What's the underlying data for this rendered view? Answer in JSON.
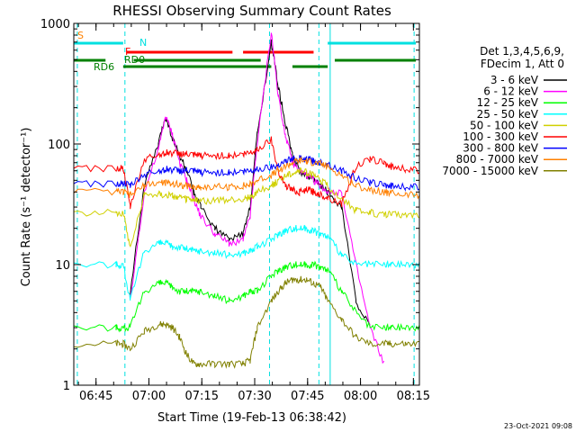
{
  "chart_data": {
    "type": "line",
    "title": "RHESSI Observing Summary Count Rates",
    "xlabel": "Start Time (19-Feb-13 06:38:42)",
    "ylabel": "Count Rate (s⁻¹ detector⁻¹)",
    "yscale": "log",
    "ylim": [
      1,
      1000
    ],
    "xlim_min": [
      0,
      98
    ],
    "x_ticks": [
      "06:45",
      "07:00",
      "07:15",
      "07:30",
      "07:45",
      "08:00",
      "08:15"
    ],
    "y_ticks": [
      "1",
      "10",
      "100",
      "1000"
    ],
    "legend_header": [
      "Det 1,3,4,5,6,9,",
      "FDecim 1, Att 0"
    ],
    "footer_date": "23-Oct-2021 09:08",
    "flags": [
      {
        "label": "S",
        "color": "#ff8000"
      },
      {
        "label": "N",
        "color": "#00e0e0"
      },
      {
        "label": "F",
        "color": "#ff0000"
      },
      {
        "label": "RD0",
        "color": "#008000"
      },
      {
        "label": "RD6",
        "color": "#008000"
      }
    ],
    "series": [
      {
        "name": "3 - 6 keV",
        "color": "#000000",
        "x": [
          0,
          12,
          14,
          16,
          20,
          24,
          26,
          28,
          30,
          32,
          34,
          36,
          40,
          44,
          48,
          50,
          52,
          56,
          58,
          60,
          62,
          64,
          66,
          68,
          70,
          72,
          76,
          80,
          84,
          88,
          90,
          94,
          98
        ],
        "y": [
          null,
          null,
          null,
          6,
          45,
          100,
          170,
          110,
          80,
          60,
          40,
          30,
          20,
          16,
          18,
          30,
          120,
          700,
          300,
          150,
          80,
          60,
          55,
          50,
          45,
          40,
          30,
          5,
          3,
          null,
          null,
          null,
          null
        ]
      },
      {
        "name": "6 - 12 keV",
        "color": "#ff00ff",
        "x": [
          0,
          12,
          14,
          16,
          20,
          24,
          26,
          28,
          30,
          32,
          34,
          36,
          40,
          44,
          48,
          50,
          52,
          56,
          58,
          60,
          62,
          64,
          66,
          68,
          70,
          72,
          76,
          80,
          84,
          88,
          90,
          94,
          98
        ],
        "y": [
          null,
          null,
          null,
          5,
          40,
          90,
          170,
          120,
          70,
          50,
          35,
          25,
          18,
          15,
          16,
          25,
          100,
          850,
          250,
          120,
          70,
          60,
          55,
          50,
          45,
          40,
          40,
          10,
          3,
          1.5,
          null,
          null,
          null
        ]
      },
      {
        "name": "12 - 25 keV",
        "color": "#00ff00",
        "x": [
          0,
          12,
          14,
          16,
          20,
          24,
          26,
          28,
          30,
          32,
          34,
          36,
          40,
          44,
          48,
          50,
          52,
          56,
          58,
          60,
          62,
          64,
          66,
          68,
          70,
          72,
          76,
          80,
          84,
          88,
          90,
          94,
          98
        ],
        "y": [
          3,
          3,
          3,
          3,
          6,
          7,
          7,
          6.5,
          6,
          6,
          6,
          6,
          5.5,
          5,
          5.5,
          6,
          6,
          8,
          9,
          9.5,
          10,
          10,
          10,
          10,
          9.5,
          9,
          6,
          4,
          3,
          3,
          3,
          3,
          3
        ]
      },
      {
        "name": "25 - 50 keV",
        "color": "#00ffff",
        "x": [
          0,
          12,
          14,
          16,
          20,
          24,
          26,
          28,
          30,
          32,
          34,
          36,
          40,
          44,
          48,
          50,
          52,
          56,
          58,
          60,
          62,
          64,
          66,
          68,
          70,
          72,
          76,
          80,
          84,
          88,
          90,
          94,
          98
        ],
        "y": [
          10,
          10,
          10,
          5,
          13,
          15,
          15,
          14,
          14,
          13.5,
          13,
          13,
          12.5,
          12,
          12.5,
          13,
          14,
          16,
          18,
          19,
          20,
          20,
          20,
          19,
          18,
          17,
          12,
          10,
          10,
          10,
          10,
          10,
          10
        ]
      },
      {
        "name": "50 - 100 keV",
        "color": "#d0d000",
        "x": [
          0,
          12,
          14,
          16,
          20,
          24,
          26,
          28,
          30,
          32,
          34,
          36,
          40,
          44,
          48,
          50,
          52,
          56,
          58,
          60,
          62,
          64,
          66,
          68,
          70,
          72,
          76,
          80,
          84,
          88,
          90,
          94,
          98
        ],
        "y": [
          27,
          27,
          27,
          14,
          38,
          39,
          38,
          37,
          36,
          35,
          34,
          34,
          34,
          34,
          35,
          36,
          40,
          45,
          50,
          55,
          58,
          60,
          58,
          55,
          50,
          45,
          35,
          28,
          27,
          26,
          26,
          26,
          26
        ]
      },
      {
        "name": "100 - 300 keV",
        "color": "#ff0000",
        "x": [
          0,
          12,
          14,
          16,
          20,
          24,
          26,
          28,
          30,
          32,
          34,
          36,
          40,
          44,
          48,
          50,
          52,
          56,
          58,
          60,
          62,
          64,
          66,
          68,
          70,
          72,
          76,
          80,
          84,
          88,
          90,
          94,
          98
        ],
        "y": [
          63,
          63,
          63,
          30,
          75,
          82,
          85,
          84,
          83,
          82,
          80,
          80,
          80,
          80,
          82,
          85,
          90,
          110,
          60,
          45,
          42,
          40,
          42,
          40,
          38,
          36,
          32,
          65,
          75,
          70,
          65,
          62,
          60
        ]
      },
      {
        "name": "300 - 800 keV",
        "color": "#0000ff",
        "x": [
          0,
          12,
          14,
          16,
          20,
          24,
          26,
          28,
          30,
          32,
          34,
          36,
          40,
          44,
          48,
          50,
          52,
          56,
          58,
          60,
          62,
          64,
          66,
          68,
          70,
          72,
          76,
          80,
          84,
          88,
          90,
          94,
          98
        ],
        "y": [
          47,
          47,
          47,
          45,
          56,
          60,
          62,
          61,
          60,
          60,
          59,
          58,
          58,
          58,
          59,
          60,
          62,
          65,
          68,
          72,
          75,
          76,
          75,
          72,
          70,
          68,
          60,
          52,
          48,
          46,
          45,
          44,
          44
        ]
      },
      {
        "name": "800 - 7000 keV",
        "color": "#ff8000",
        "x": [
          0,
          12,
          14,
          16,
          20,
          24,
          26,
          28,
          30,
          32,
          34,
          36,
          40,
          44,
          48,
          50,
          52,
          56,
          58,
          60,
          62,
          64,
          66,
          68,
          70,
          72,
          76,
          80,
          84,
          88,
          90,
          94,
          98
        ],
        "y": [
          40,
          40,
          40,
          38,
          45,
          48,
          48,
          47,
          46,
          45,
          44,
          44,
          44,
          44,
          45,
          46,
          50,
          55,
          60,
          65,
          70,
          73,
          72,
          70,
          68,
          65,
          55,
          45,
          42,
          40,
          39,
          38,
          38
        ]
      },
      {
        "name": "7000 - 15000 keV",
        "color": "#808000",
        "x": [
          0,
          12,
          14,
          16,
          20,
          24,
          26,
          28,
          30,
          32,
          34,
          36,
          40,
          44,
          48,
          50,
          52,
          56,
          58,
          60,
          62,
          64,
          66,
          68,
          70,
          72,
          76,
          80,
          84,
          88,
          90,
          94,
          98
        ],
        "y": [
          2.2,
          2.2,
          2.2,
          2,
          2.8,
          3.2,
          3.2,
          3,
          2.5,
          1.8,
          1.5,
          1.5,
          1.5,
          1.5,
          1.5,
          1.6,
          3,
          5,
          6,
          7,
          7.5,
          7.5,
          7.5,
          7,
          6.5,
          5,
          3.5,
          2.5,
          2.2,
          2.2,
          2.2,
          2.2,
          2.2
        ]
      }
    ]
  }
}
